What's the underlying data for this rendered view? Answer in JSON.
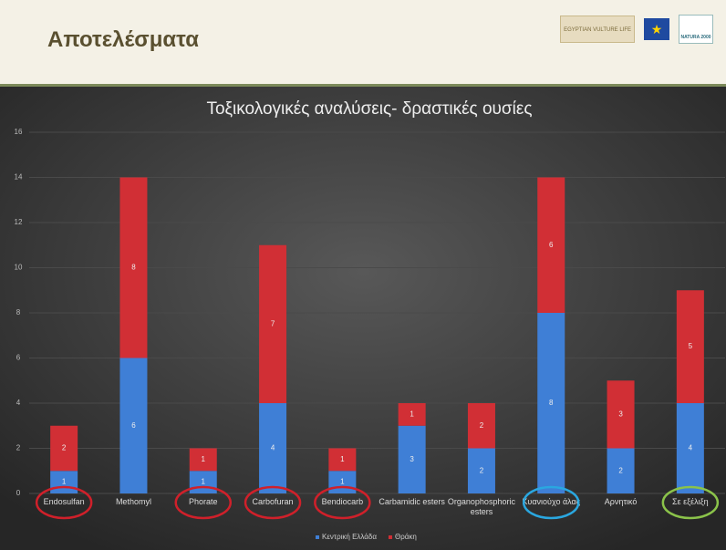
{
  "header": {
    "title": "Αποτελέσματα",
    "logo_text": "EGYPTIAN VULTURE LIFE",
    "natura_text": "NATURA 2000"
  },
  "chart_data": {
    "type": "bar",
    "stacked": true,
    "title": "Τοξικολογικές αναλύσεις- δραστικές ουσίες",
    "categories": [
      "Endosulfan",
      "Methomyl",
      "Phorate",
      "Carbofuran",
      "Bendiocarb",
      "Carbamidic esters",
      "Organophosphoric esters",
      "Κυανιούχο άλας",
      "Αρνητικό",
      "Σε εξέλιξη"
    ],
    "series": [
      {
        "name": "Κεντρική Ελλάδα",
        "color": "#3f7fd6",
        "values": [
          1,
          6,
          1,
          4,
          1,
          3,
          2,
          8,
          2,
          4
        ]
      },
      {
        "name": "Θράκη",
        "color": "#d12f35",
        "values": [
          2,
          8,
          1,
          7,
          1,
          1,
          2,
          6,
          3,
          5
        ]
      }
    ],
    "label_circles": [
      "#d0202a",
      null,
      "#d0202a",
      "#d0202a",
      "#d0202a",
      null,
      null,
      "#2aa7e0",
      null,
      "#8bc34a"
    ],
    "ylim": [
      0,
      16
    ],
    "yticks": [
      0,
      2,
      4,
      6,
      8,
      10,
      12,
      14,
      16
    ],
    "grid": true,
    "legend": "bottom"
  }
}
